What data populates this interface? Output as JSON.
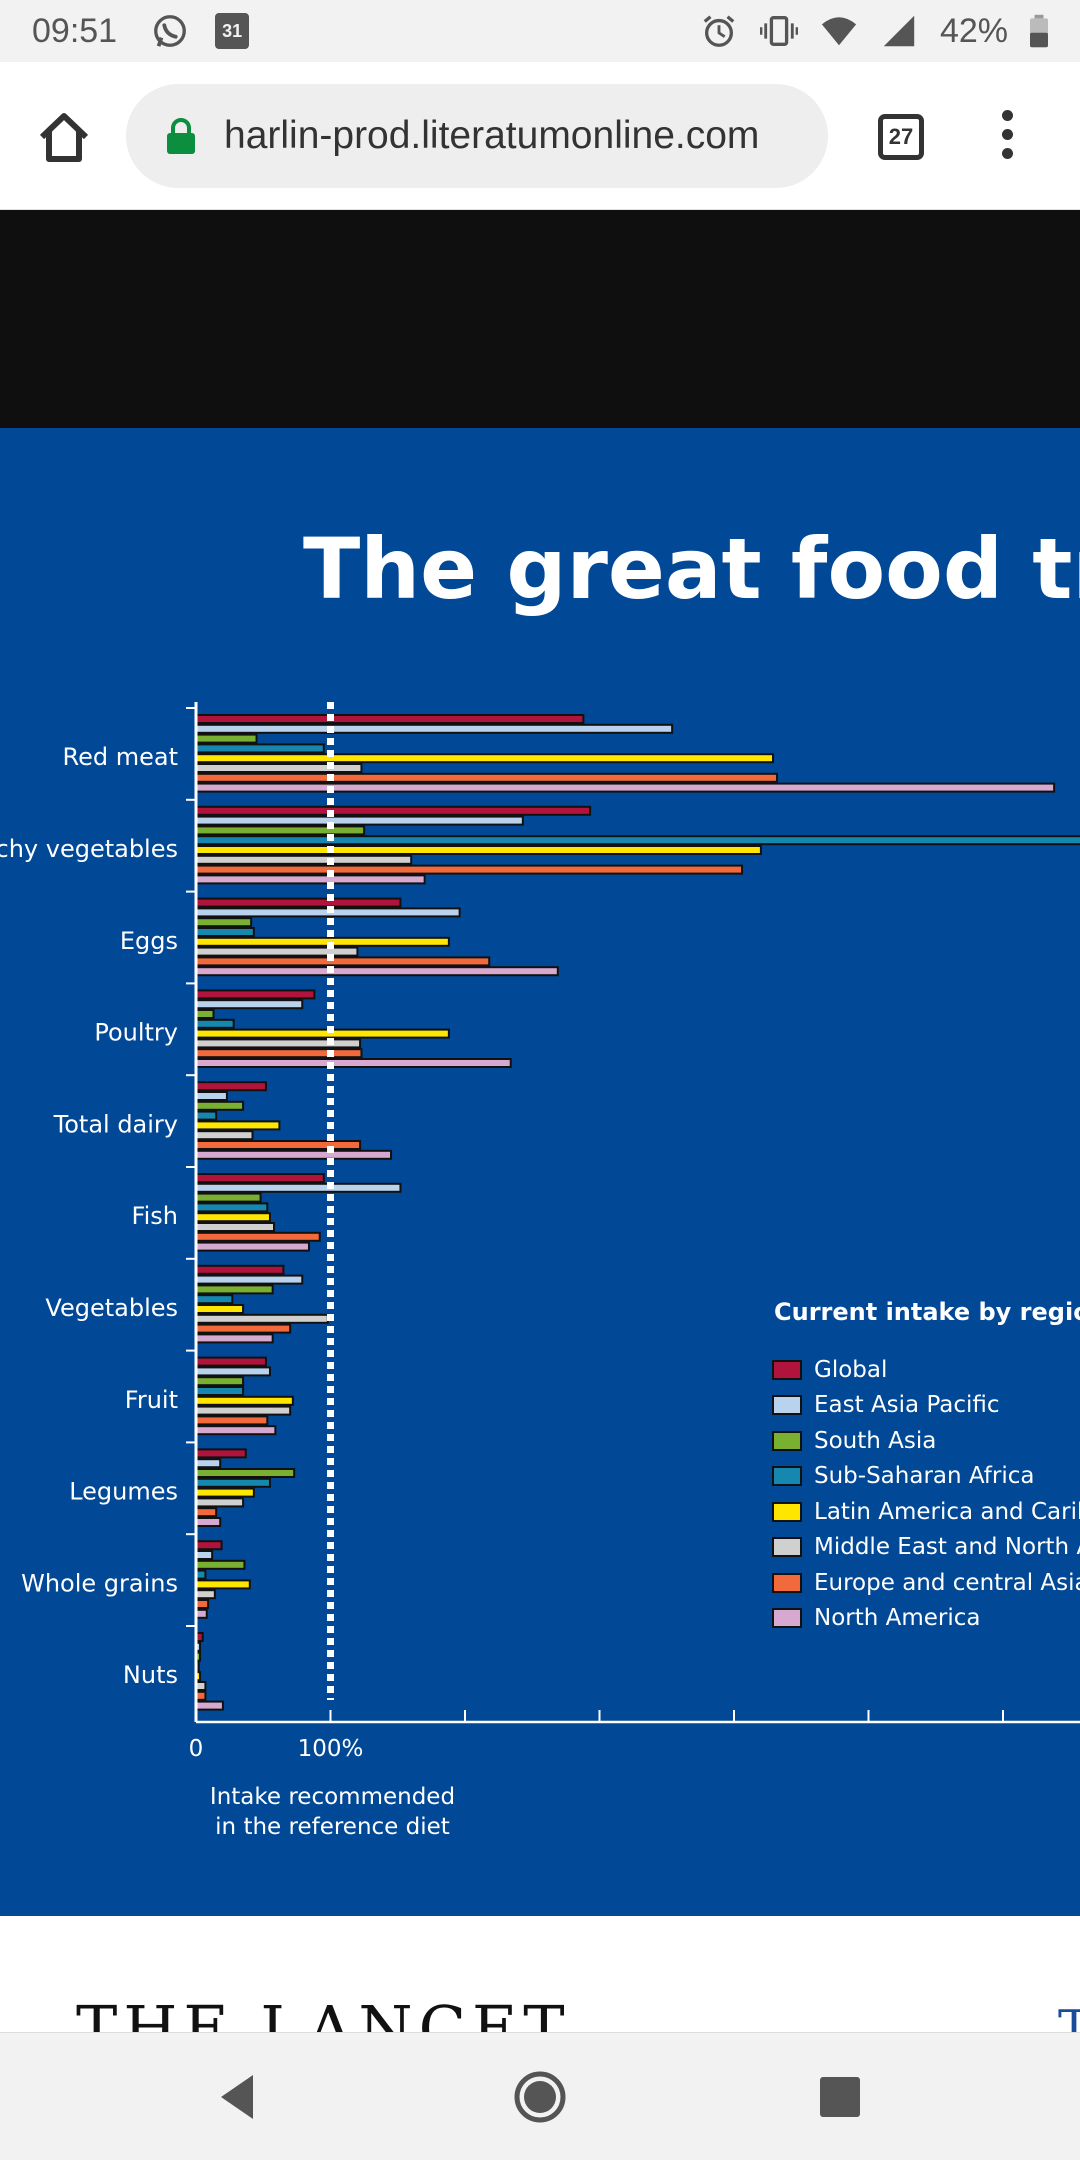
{
  "status_bar": {
    "time": "09:51",
    "calendar_day": "31",
    "battery": "42%",
    "icons": [
      "whatsapp-icon",
      "calendar-icon",
      "alarm-icon",
      "vibrate-icon",
      "wifi-icon",
      "signal-icon",
      "battery-icon"
    ]
  },
  "browser": {
    "url": "harlin-prod.literatumonline.com",
    "tab_count": "27",
    "icons": [
      "home-icon",
      "lock-icon",
      "tabs-icon",
      "menu-icon"
    ]
  },
  "page": {
    "headline": "The great food trans",
    "footer_logo": "THE LANCET",
    "footer_right": "T"
  },
  "chart_data": {
    "type": "bar",
    "orientation": "horizontal",
    "categories": [
      "Red meat",
      "Starchy vegetables",
      "Eggs",
      "Poultry",
      "Total dairy",
      "Fish",
      "Vegetables",
      "Fruit",
      "Legumes",
      "Whole grains",
      "Nuts"
    ],
    "category_labels_visible": [
      "Red meat",
      "archy vegetables",
      "Eggs",
      "Poultry",
      "Total dairy",
      "Fish",
      "Vegetables",
      "Fruit",
      "Legumes",
      "Whole grains",
      "Nuts"
    ],
    "value_unit": "% of intake recommended in the reference diet",
    "xlim": [
      0,
      650
    ],
    "x_ticks": [
      0,
      100,
      200,
      300,
      400,
      500,
      600
    ],
    "x_tick_labels": [
      "0",
      "100%"
    ],
    "reference_line": 100,
    "reference_caption_line1": "Intake recommended",
    "reference_caption_line2": "in the reference diet",
    "legend_title": "Current intake by region",
    "legend_position": "right",
    "series": [
      {
        "name": "Global",
        "color": "#b0143c",
        "values": [
          288,
          293,
          152,
          88,
          52,
          95,
          65,
          52,
          37,
          19,
          5
        ]
      },
      {
        "name": "East Asia Pacific",
        "color": "#b9d3ee",
        "values": [
          354,
          243,
          196,
          79,
          23,
          152,
          79,
          55,
          18,
          12,
          3
        ]
      },
      {
        "name": "South Asia",
        "color": "#79b032",
        "values": [
          45,
          125,
          41,
          13,
          35,
          48,
          57,
          35,
          73,
          36,
          3
        ]
      },
      {
        "name": "Sub-Saharan Africa",
        "color": "#1688b0",
        "values": [
          95,
          660,
          43,
          28,
          15,
          53,
          27,
          35,
          55,
          7,
          2
        ]
      },
      {
        "name": "Latin America and Caribbean",
        "color": "#ffe600",
        "values": [
          429,
          420,
          188,
          188,
          62,
          55,
          35,
          72,
          43,
          40,
          3
        ]
      },
      {
        "name": "Middle East and North Africa",
        "color": "#d0d0d0",
        "values": [
          123,
          160,
          120,
          122,
          42,
          58,
          98,
          70,
          35,
          14,
          7
        ]
      },
      {
        "name": "Europe and central  Asia",
        "color": "#f26a3c",
        "values": [
          432,
          406,
          218,
          123,
          122,
          92,
          70,
          53,
          15,
          9,
          7
        ]
      },
      {
        "name": "North America",
        "color": "#d7a9d0",
        "values": [
          638,
          170,
          269,
          234,
          145,
          84,
          57,
          59,
          18,
          8,
          20
        ]
      }
    ]
  }
}
